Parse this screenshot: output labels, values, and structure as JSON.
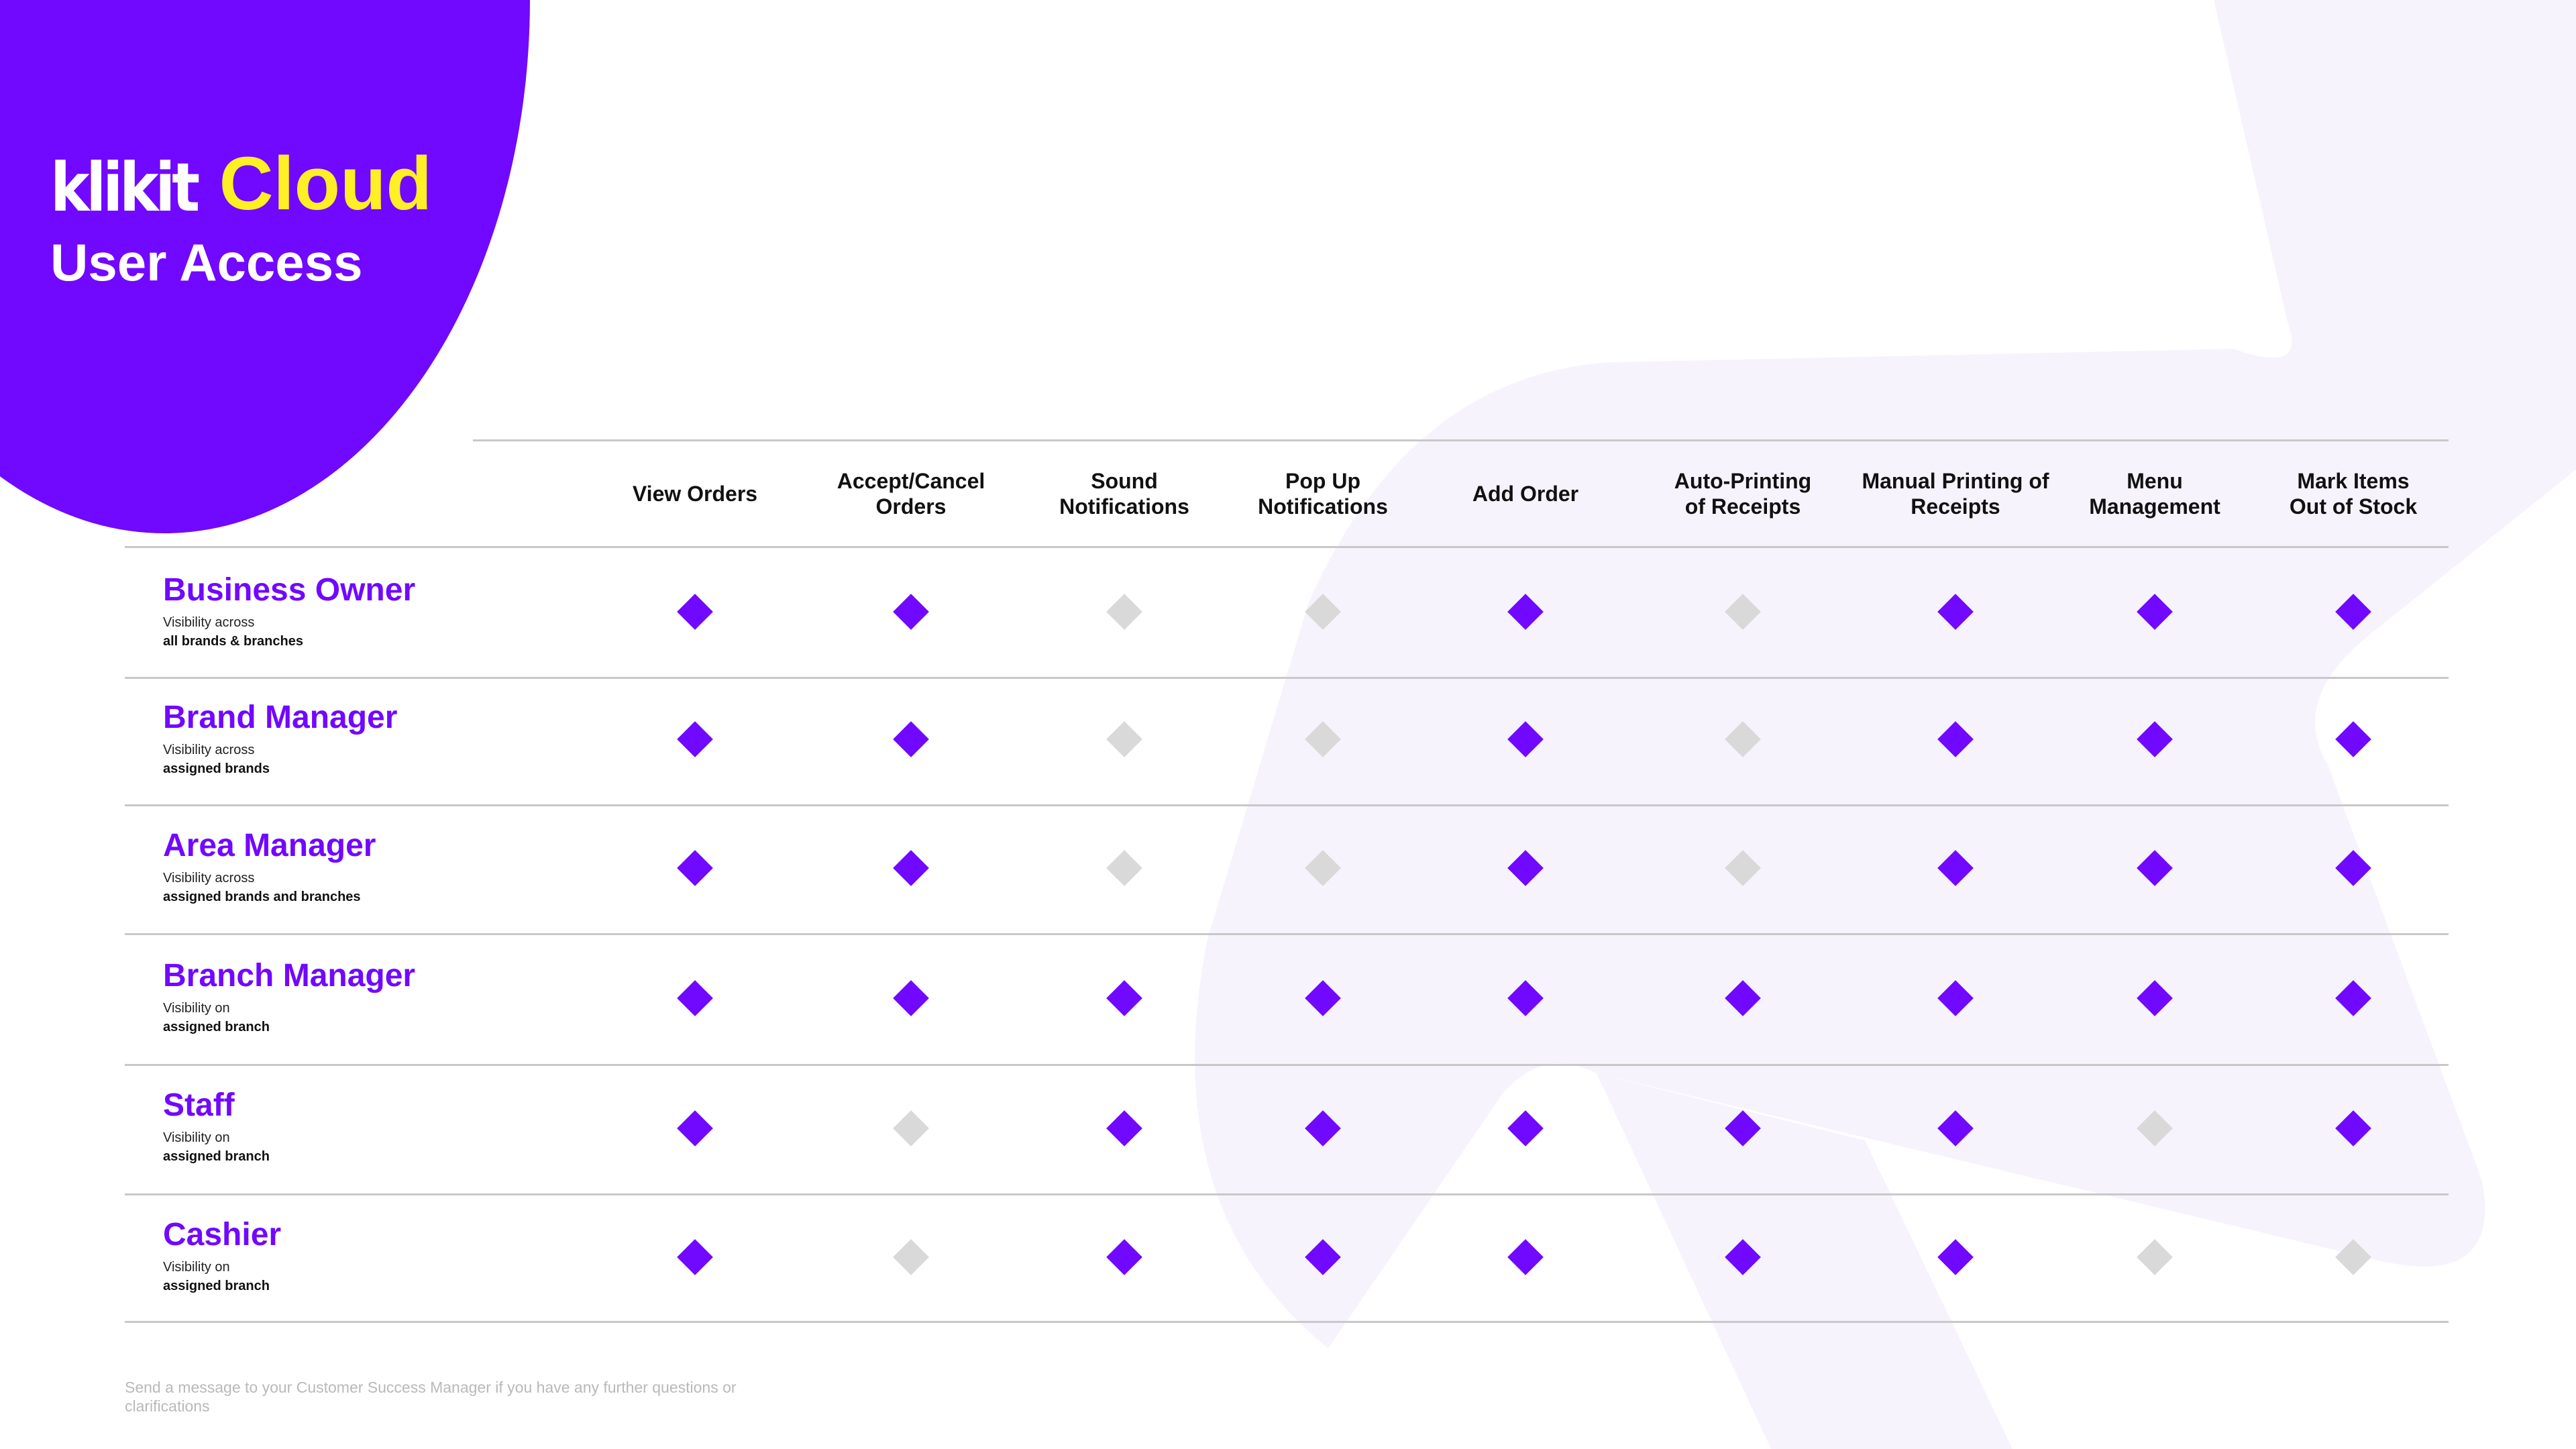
{
  "brand": {
    "logo_text": "klikit",
    "product": "Cloud",
    "title": "User Access"
  },
  "colors": {
    "brand_purple": "#7108ff",
    "brand_yellow": "#ffef25",
    "diamond_on": "#7108ff",
    "diamond_off": "#d9d9d9",
    "background_shape": "#f6f3fd"
  },
  "columns": [
    "View Orders",
    "Accept/Cancel\nOrders",
    "Sound\nNotifications",
    "Pop Up\nNotifications",
    "Add Order",
    "Auto-Printing\nof Receipts",
    "Manual Printing of\nReceipts",
    "Menu\nManagement",
    "Mark Items\nOut of Stock"
  ],
  "roles": [
    {
      "name": "Business Owner",
      "visibility": "Visibility across",
      "scope": "all brands & branches",
      "access": [
        true,
        true,
        false,
        false,
        true,
        false,
        true,
        true,
        true
      ]
    },
    {
      "name": "Brand Manager",
      "visibility": "Visibility across",
      "scope": "assigned brands",
      "access": [
        true,
        true,
        false,
        false,
        true,
        false,
        true,
        true,
        true
      ]
    },
    {
      "name": "Area Manager",
      "visibility": "Visibility across",
      "scope": "assigned brands and branches",
      "access": [
        true,
        true,
        false,
        false,
        true,
        false,
        true,
        true,
        true
      ]
    },
    {
      "name": "Branch Manager",
      "visibility": "Visibility on",
      "scope": "assigned branch",
      "access": [
        true,
        true,
        true,
        true,
        true,
        true,
        true,
        true,
        true
      ]
    },
    {
      "name": "Staff",
      "visibility": "Visibility on",
      "scope": "assigned branch",
      "access": [
        true,
        false,
        true,
        true,
        true,
        true,
        true,
        false,
        true
      ]
    },
    {
      "name": "Cashier",
      "visibility": "Visibility on",
      "scope": "assigned branch",
      "access": [
        true,
        false,
        true,
        true,
        true,
        true,
        true,
        false,
        false
      ]
    }
  ],
  "footer": {
    "text": "Send a message to your Customer Success Manager if you have any further questions or clarifications"
  }
}
